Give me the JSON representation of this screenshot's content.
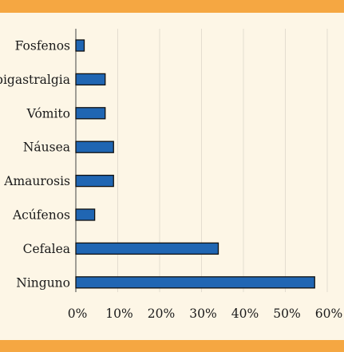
{
  "colors": {
    "background": "#fdf6e6",
    "band": "#f5a742",
    "bar_fill": "#2066b3",
    "bar_stroke": "#111111",
    "grid": "#e4ddd0"
  },
  "chart_data": {
    "type": "bar",
    "orientation": "horizontal",
    "categories": [
      "Fosfenos",
      "Epigastralgia",
      "Vómito",
      "Náusea",
      "Amaurosis",
      "Acúfenos",
      "Cefalea",
      "Ninguno"
    ],
    "values": [
      2,
      7,
      7,
      9,
      9,
      4.5,
      34,
      57
    ],
    "unit": "%",
    "xlim": [
      0,
      60
    ],
    "ticks": [
      0,
      10,
      20,
      30,
      40,
      50,
      60
    ],
    "tick_labels": [
      "0%",
      "10%",
      "20%",
      "30%",
      "40%",
      "50%",
      "60%"
    ],
    "grid": true
  }
}
